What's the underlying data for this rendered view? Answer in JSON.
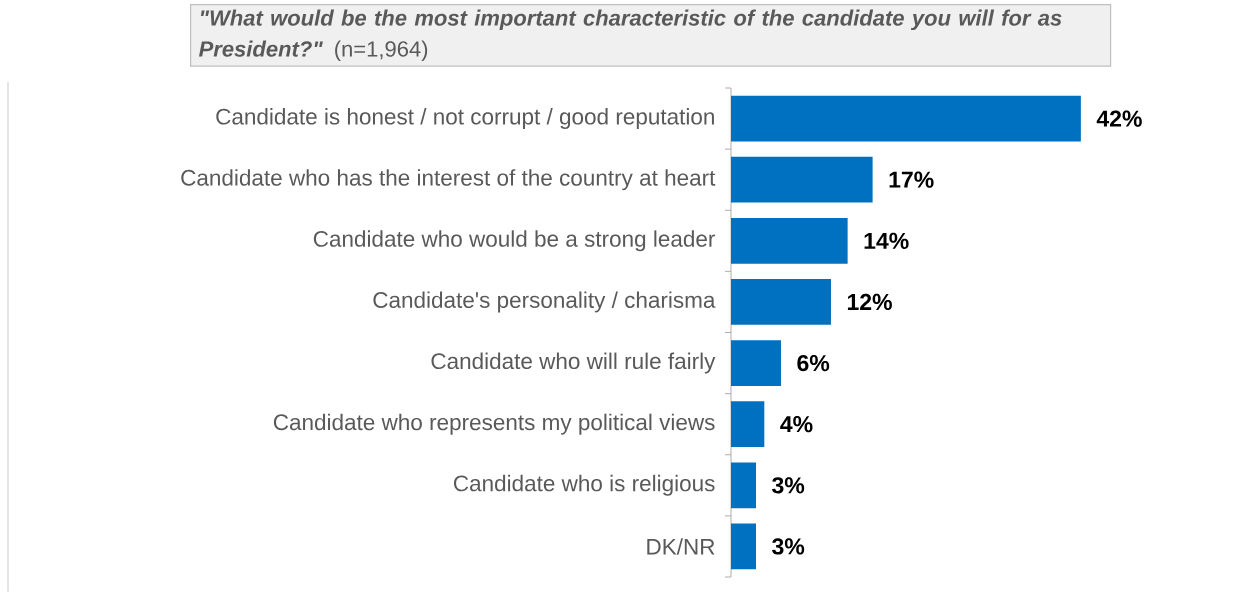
{
  "chart_data": {
    "type": "bar",
    "orientation": "horizontal",
    "title": "\"What would be the most important characteristic of the candidate you will for as President?\"",
    "subtitle": "(n=1,964)",
    "categories": [
      "Candidate is honest / not corrupt / good reputation",
      "Candidate who has the interest of the country at heart",
      "Candidate who would be a strong leader",
      "Candidate's personality / charisma",
      "Candidate who will rule fairly",
      "Candidate who represents my political views",
      "Candidate who is religious",
      "DK/NR"
    ],
    "values": [
      42,
      17,
      14,
      12,
      6,
      4,
      3,
      3
    ],
    "value_labels": [
      "42%",
      "17%",
      "14%",
      "12%",
      "6%",
      "4%",
      "3%",
      "3%"
    ],
    "color": "#0070c0",
    "tick_labels": "y"
  }
}
